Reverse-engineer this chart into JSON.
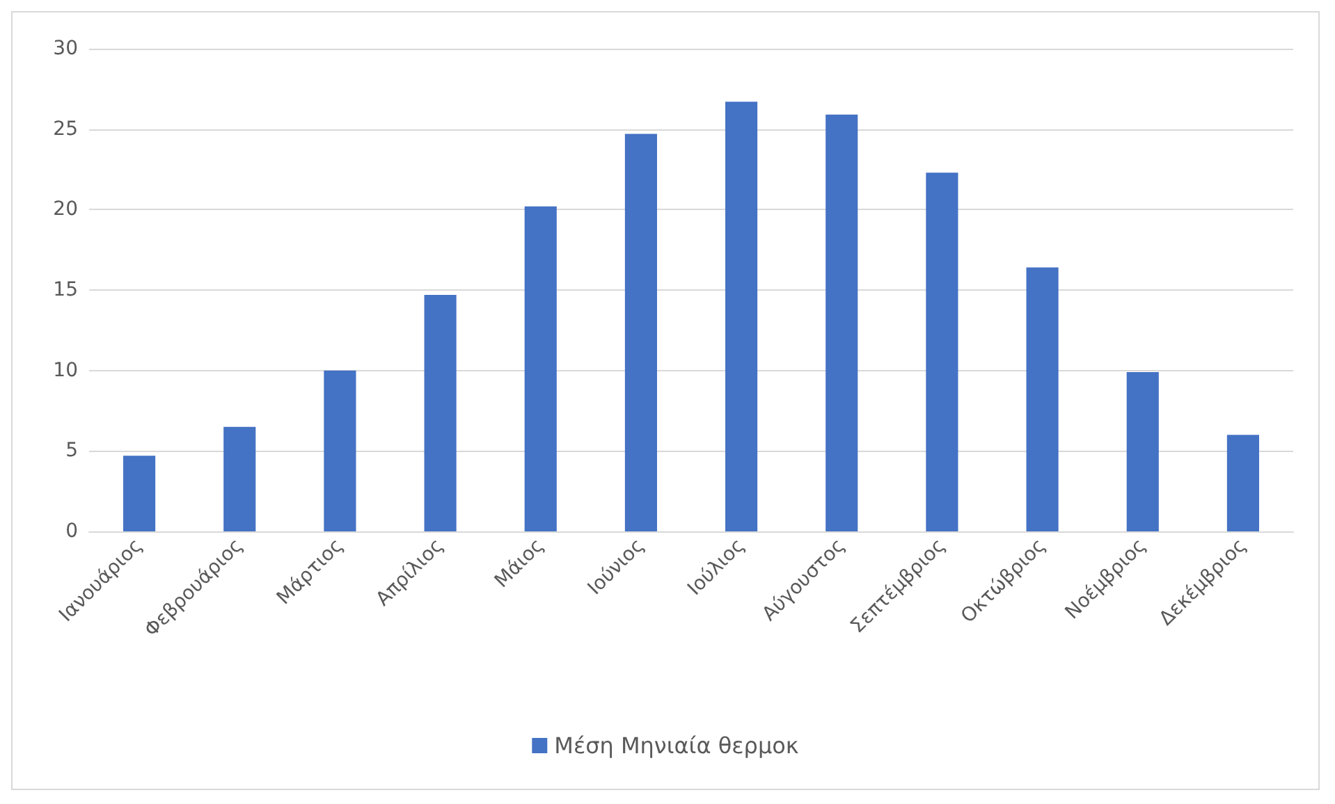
{
  "chart_data": {
    "type": "bar",
    "categories": [
      "Ιανουάριος",
      "Φεβρουάριος",
      "Μάρτιος",
      "Απρίλιος",
      "Μάιος",
      "Ιούνιος",
      "Ιούλιος",
      "Αύγουστος",
      "Σεπτέμβριος",
      "Οκτώβριος",
      "Νοέμβριος",
      "Δεκέμβριος"
    ],
    "series": [
      {
        "name": "Μέση Μηνιαία θερμοκ",
        "color": "#4472c4",
        "values": [
          4.7,
          6.5,
          10.0,
          14.7,
          20.2,
          24.7,
          26.7,
          25.9,
          22.3,
          16.4,
          9.9,
          6.0
        ]
      }
    ],
    "ylim": [
      0,
      30
    ],
    "yticks": [
      0,
      5,
      10,
      15,
      20,
      25,
      30
    ],
    "grid": "y",
    "legend": "bottom"
  }
}
